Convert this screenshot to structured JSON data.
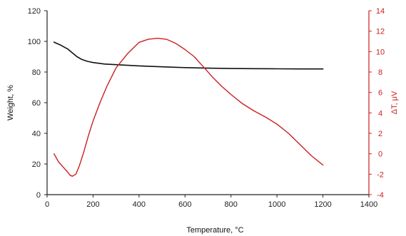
{
  "chart_data": {
    "type": "line",
    "xlabel": "Temperature, °C",
    "ylabel_left": "Weight, %",
    "ylabel_right": "ΔT, μV",
    "x_ticks": [
      "0",
      "200",
      "400",
      "600",
      "800",
      "1000",
      "1200",
      "1400"
    ],
    "y_left_ticks": [
      "0",
      "20",
      "40",
      "60",
      "80",
      "100",
      "120"
    ],
    "y_right_ticks": [
      "-4",
      "-2",
      "0",
      "2",
      "4",
      "6",
      "8",
      "10",
      "12",
      "14"
    ],
    "xlim": [
      0,
      1400
    ],
    "ylim_left": [
      0,
      120
    ],
    "ylim_right": [
      -4,
      14
    ],
    "grid": false,
    "series": [
      {
        "axis": "left",
        "color": "#111111",
        "x": [
          30,
          60,
          90,
          110,
          130,
          150,
          175,
          200,
          250,
          300,
          400,
          500,
          600,
          700,
          800,
          900,
          1000,
          1100,
          1200
        ],
        "y": [
          99.5,
          97.5,
          95,
          92.5,
          90,
          88.3,
          87,
          86.2,
          85.2,
          84.8,
          84,
          83.4,
          82.9,
          82.5,
          82.3,
          82.2,
          82.1,
          82,
          82
        ]
      },
      {
        "axis": "right",
        "color": "#cc1f1f",
        "x": [
          30,
          50,
          70,
          90,
          100,
          110,
          125,
          140,
          160,
          180,
          200,
          230,
          260,
          300,
          350,
          400,
          440,
          480,
          520,
          560,
          600,
          640,
          680,
          720,
          760,
          800,
          850,
          900,
          950,
          1000,
          1050,
          1100,
          1150,
          1200
        ],
        "y": [
          0,
          -0.8,
          -1.3,
          -1.8,
          -2.1,
          -2.2,
          -2.0,
          -1.2,
          0.2,
          1.8,
          3.2,
          5.0,
          6.6,
          8.4,
          9.8,
          10.9,
          11.2,
          11.3,
          11.2,
          10.8,
          10.2,
          9.5,
          8.5,
          7.5,
          6.6,
          5.8,
          4.9,
          4.2,
          3.6,
          2.9,
          2.0,
          0.9,
          -0.2,
          -1.1
        ]
      }
    ]
  }
}
